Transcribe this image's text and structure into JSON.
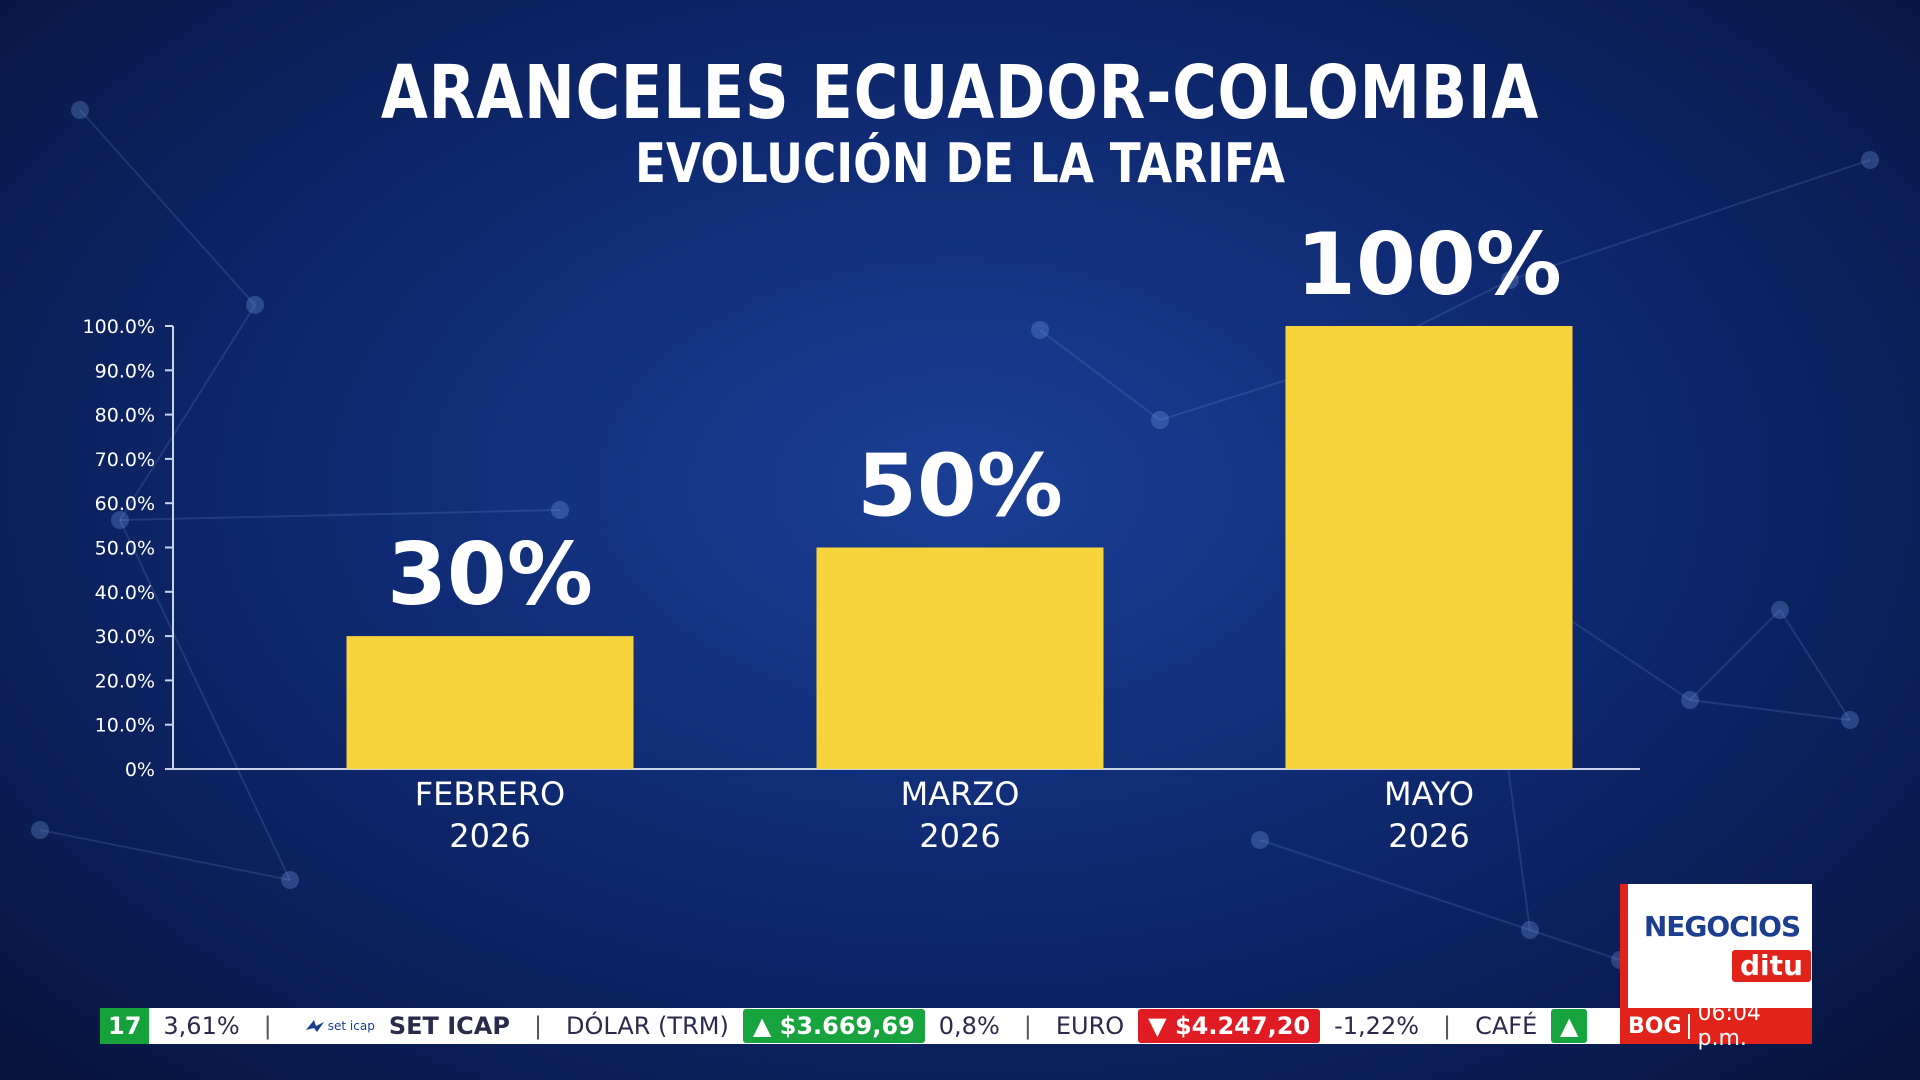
{
  "header": {
    "title": "ARANCELES ECUADOR-COLOMBIA",
    "subtitle": "EVOLUCIÓN DE LA TARIFA"
  },
  "chart_data": {
    "type": "bar",
    "title": "ARANCELES ECUADOR-COLOMBIA",
    "subtitle": "EVOLUCIÓN DE LA TARIFA",
    "categories": [
      [
        "FEBRERO",
        "2026"
      ],
      [
        "MARZO",
        "2026"
      ],
      [
        "MAYO",
        "2026"
      ]
    ],
    "values": [
      30,
      50,
      100
    ],
    "data_labels": [
      "30%",
      "50%",
      "100%"
    ],
    "yticks": [
      "0%",
      "10.0%",
      "20.0%",
      "30.0%",
      "40.0%",
      "50.0%",
      "60.0%",
      "70.0%",
      "80.0%",
      "90.0%",
      "100.0%"
    ],
    "ylim": [
      0,
      100
    ],
    "xlabel": "",
    "ylabel": "",
    "grid": false,
    "bar_color": "#f7d33c"
  },
  "ticker": {
    "lead_number": "17",
    "lead_value": "3,61%",
    "sep": "|",
    "logo_small": "set icap",
    "set_icap": "SET ICAP",
    "dolar_label": "DÓLAR (TRM)",
    "dolar_value": "$3.669,69",
    "dolar_change": "0,8%",
    "euro_label": "EURO",
    "euro_value": "$4.247,20",
    "euro_change": "-1,22%",
    "cafe_label": "CAFÉ"
  },
  "clock": {
    "city": "BOG",
    "time": "06:04 p.m."
  },
  "logo": {
    "top": "NEGOCIOS",
    "bottom": "ditu"
  },
  "colors": {
    "up": "#17a33d",
    "down": "#e01b24",
    "brand_red": "#e2231a",
    "brand_blue": "#1b3e8f"
  }
}
